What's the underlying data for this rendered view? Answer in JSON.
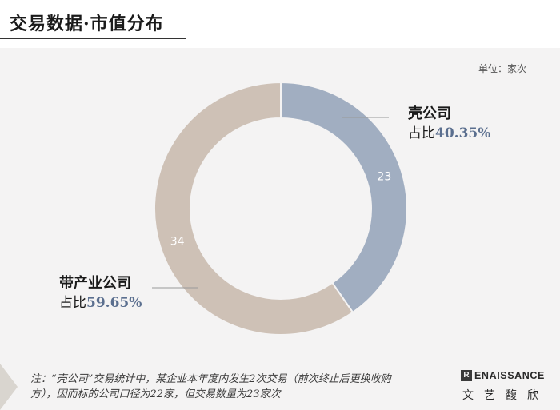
{
  "header": {
    "title": "交易数据·市值分布"
  },
  "unit_label": "单位：家次",
  "chart_data": {
    "type": "pie",
    "variant": "donut",
    "slices": [
      {
        "name": "壳公司",
        "value": 23,
        "label_value": "23",
        "share_prefix": "占比",
        "share": "40.35%",
        "color": "#a1aec1"
      },
      {
        "name": "带产业公司",
        "value": 34,
        "label_value": "34",
        "share_prefix": "占比",
        "share": "59.65%",
        "color": "#cec1b6"
      }
    ]
  },
  "colors": {
    "share_text": "#5b6f8f",
    "leader_line": "#999999"
  },
  "footer": {
    "note_line1": "注：“壳公司”交易统计中，某企业本年度内发生2次交易（前次终止后更换收购",
    "note_line2": "方），因而标的公司口径为22家，但交易数量为23家次",
    "logo_mark": "R",
    "logo_word": "ENAISSANCE",
    "logo_cn": "文艺馥欣"
  }
}
